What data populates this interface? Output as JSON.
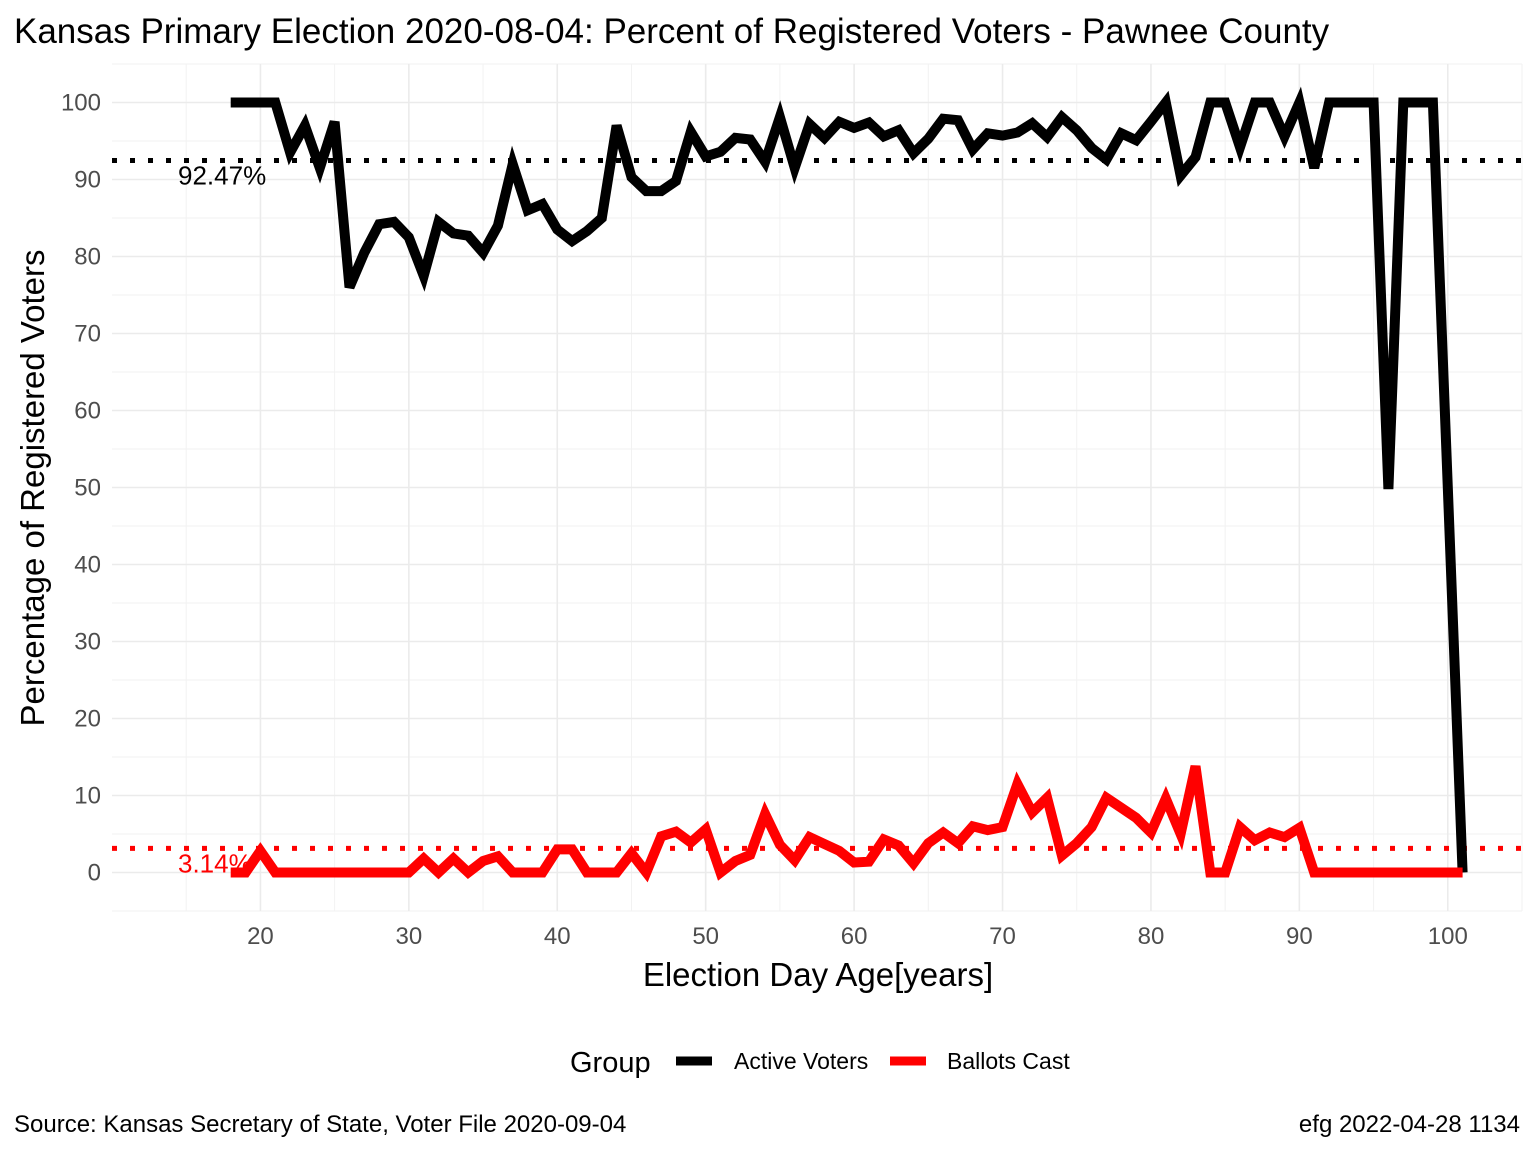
{
  "chart_data": {
    "type": "line",
    "title": "Kansas Primary Election 2020-08-04:  Percent of Registered Voters - Pawnee County",
    "xlabel": "Election Day Age[years]",
    "ylabel": "Percentage of Registered Voters",
    "xlim": [
      10,
      105
    ],
    "ylim": [
      -5,
      105
    ],
    "x_ticks": [
      20,
      30,
      40,
      50,
      60,
      70,
      80,
      90,
      100
    ],
    "y_ticks": [
      0,
      10,
      20,
      30,
      40,
      50,
      60,
      70,
      80,
      90,
      100
    ],
    "x_tick_labels": [
      "20",
      "30",
      "40",
      "50",
      "60",
      "70",
      "80",
      "90",
      "100"
    ],
    "y_tick_labels": [
      "0",
      "10",
      "20",
      "30",
      "40",
      "50",
      "60",
      "70",
      "80",
      "90",
      "100"
    ],
    "grid": true,
    "legend": {
      "title": "Group",
      "position": "bottom"
    },
    "series": [
      {
        "name": "Active Voters",
        "color": "#000000",
        "x": [
          18,
          19,
          20,
          21,
          22,
          23,
          24,
          25,
          26,
          27,
          28,
          29,
          30,
          31,
          32,
          33,
          34,
          35,
          36,
          37,
          38,
          39,
          40,
          41,
          42,
          43,
          44,
          45,
          46,
          47,
          48,
          49,
          50,
          51,
          52,
          53,
          54,
          55,
          56,
          57,
          58,
          59,
          60,
          61,
          62,
          63,
          64,
          65,
          66,
          67,
          68,
          69,
          70,
          71,
          72,
          73,
          74,
          75,
          76,
          77,
          78,
          79,
          80,
          81,
          82,
          83,
          84,
          85,
          86,
          87,
          88,
          89,
          90,
          91,
          92,
          93,
          94,
          95,
          96,
          97,
          98,
          99,
          100,
          101
        ],
        "values": [
          100,
          100,
          100,
          100,
          93.5,
          97,
          91.5,
          97.5,
          76,
          80.5,
          84.2,
          84.5,
          82.5,
          77.5,
          84.5,
          83,
          82.7,
          80.5,
          84,
          92,
          86,
          86.8,
          83.5,
          82,
          83.3,
          85,
          97,
          90.3,
          88.5,
          88.5,
          89.8,
          96.2,
          93,
          93.6,
          95.4,
          95.2,
          92.3,
          98.1,
          91.5,
          97.2,
          95.4,
          97.5,
          96.7,
          97.4,
          95.6,
          96.4,
          93.4,
          95.3,
          97.9,
          97.7,
          93.9,
          96,
          95.7,
          96.1,
          97.3,
          95.5,
          98.1,
          96.4,
          94.1,
          92.6,
          96,
          95.1,
          97.5,
          100,
          90.5,
          92.9,
          100,
          100,
          94.2,
          100,
          100,
          95.6,
          100,
          91.5,
          100,
          100,
          100,
          100,
          49.8,
          100,
          100,
          100,
          50,
          0
        ]
      },
      {
        "name": "Ballots Cast",
        "color": "#ff0000",
        "x": [
          18,
          19,
          20,
          21,
          22,
          23,
          24,
          25,
          26,
          27,
          28,
          29,
          30,
          31,
          32,
          33,
          34,
          35,
          36,
          37,
          38,
          39,
          40,
          41,
          42,
          43,
          44,
          45,
          46,
          47,
          48,
          49,
          50,
          51,
          52,
          53,
          54,
          55,
          56,
          57,
          58,
          59,
          60,
          61,
          62,
          63,
          64,
          65,
          66,
          67,
          68,
          69,
          70,
          71,
          72,
          73,
          74,
          75,
          76,
          77,
          78,
          79,
          80,
          81,
          82,
          83,
          84,
          85,
          86,
          87,
          88,
          89,
          90,
          91,
          92,
          93,
          94,
          95,
          96,
          97,
          98,
          99,
          100,
          101
        ],
        "values": [
          0,
          0,
          2.8,
          0,
          0,
          0,
          0,
          0,
          0,
          0,
          0,
          0,
          0,
          1.8,
          0,
          1.8,
          0,
          1.5,
          2.1,
          0,
          0,
          0,
          3,
          3,
          0,
          0,
          0,
          2.5,
          0,
          4.7,
          5.3,
          3.9,
          5.6,
          0,
          1.5,
          2.3,
          7.6,
          3.6,
          1.6,
          4.6,
          3.7,
          2.8,
          1.3,
          1.4,
          4.3,
          3.5,
          1.2,
          3.8,
          5.2,
          3.8,
          6,
          5.5,
          5.9,
          11.5,
          7.8,
          9.7,
          2.2,
          3.8,
          5.9,
          9.7,
          8.4,
          7.1,
          5.2,
          9.6,
          5,
          13.8,
          0,
          0,
          5.9,
          4.2,
          5.2,
          4.6,
          5.8,
          0,
          0,
          0,
          0,
          0,
          0,
          0,
          0,
          0,
          0,
          0
        ]
      }
    ],
    "reference_lines": [
      {
        "series": "Active Voters",
        "y": 92.47,
        "label": "92.47%",
        "color": "#000000",
        "style": "dotted"
      },
      {
        "series": "Ballots Cast",
        "y": 3.14,
        "label": "3.14%",
        "color": "#ff0000",
        "style": "dotted"
      }
    ]
  },
  "caption": {
    "left": "Source:  Kansas Secretary of State, Voter File  2020-09-04",
    "right": "efg 2022-04-28 1134"
  }
}
